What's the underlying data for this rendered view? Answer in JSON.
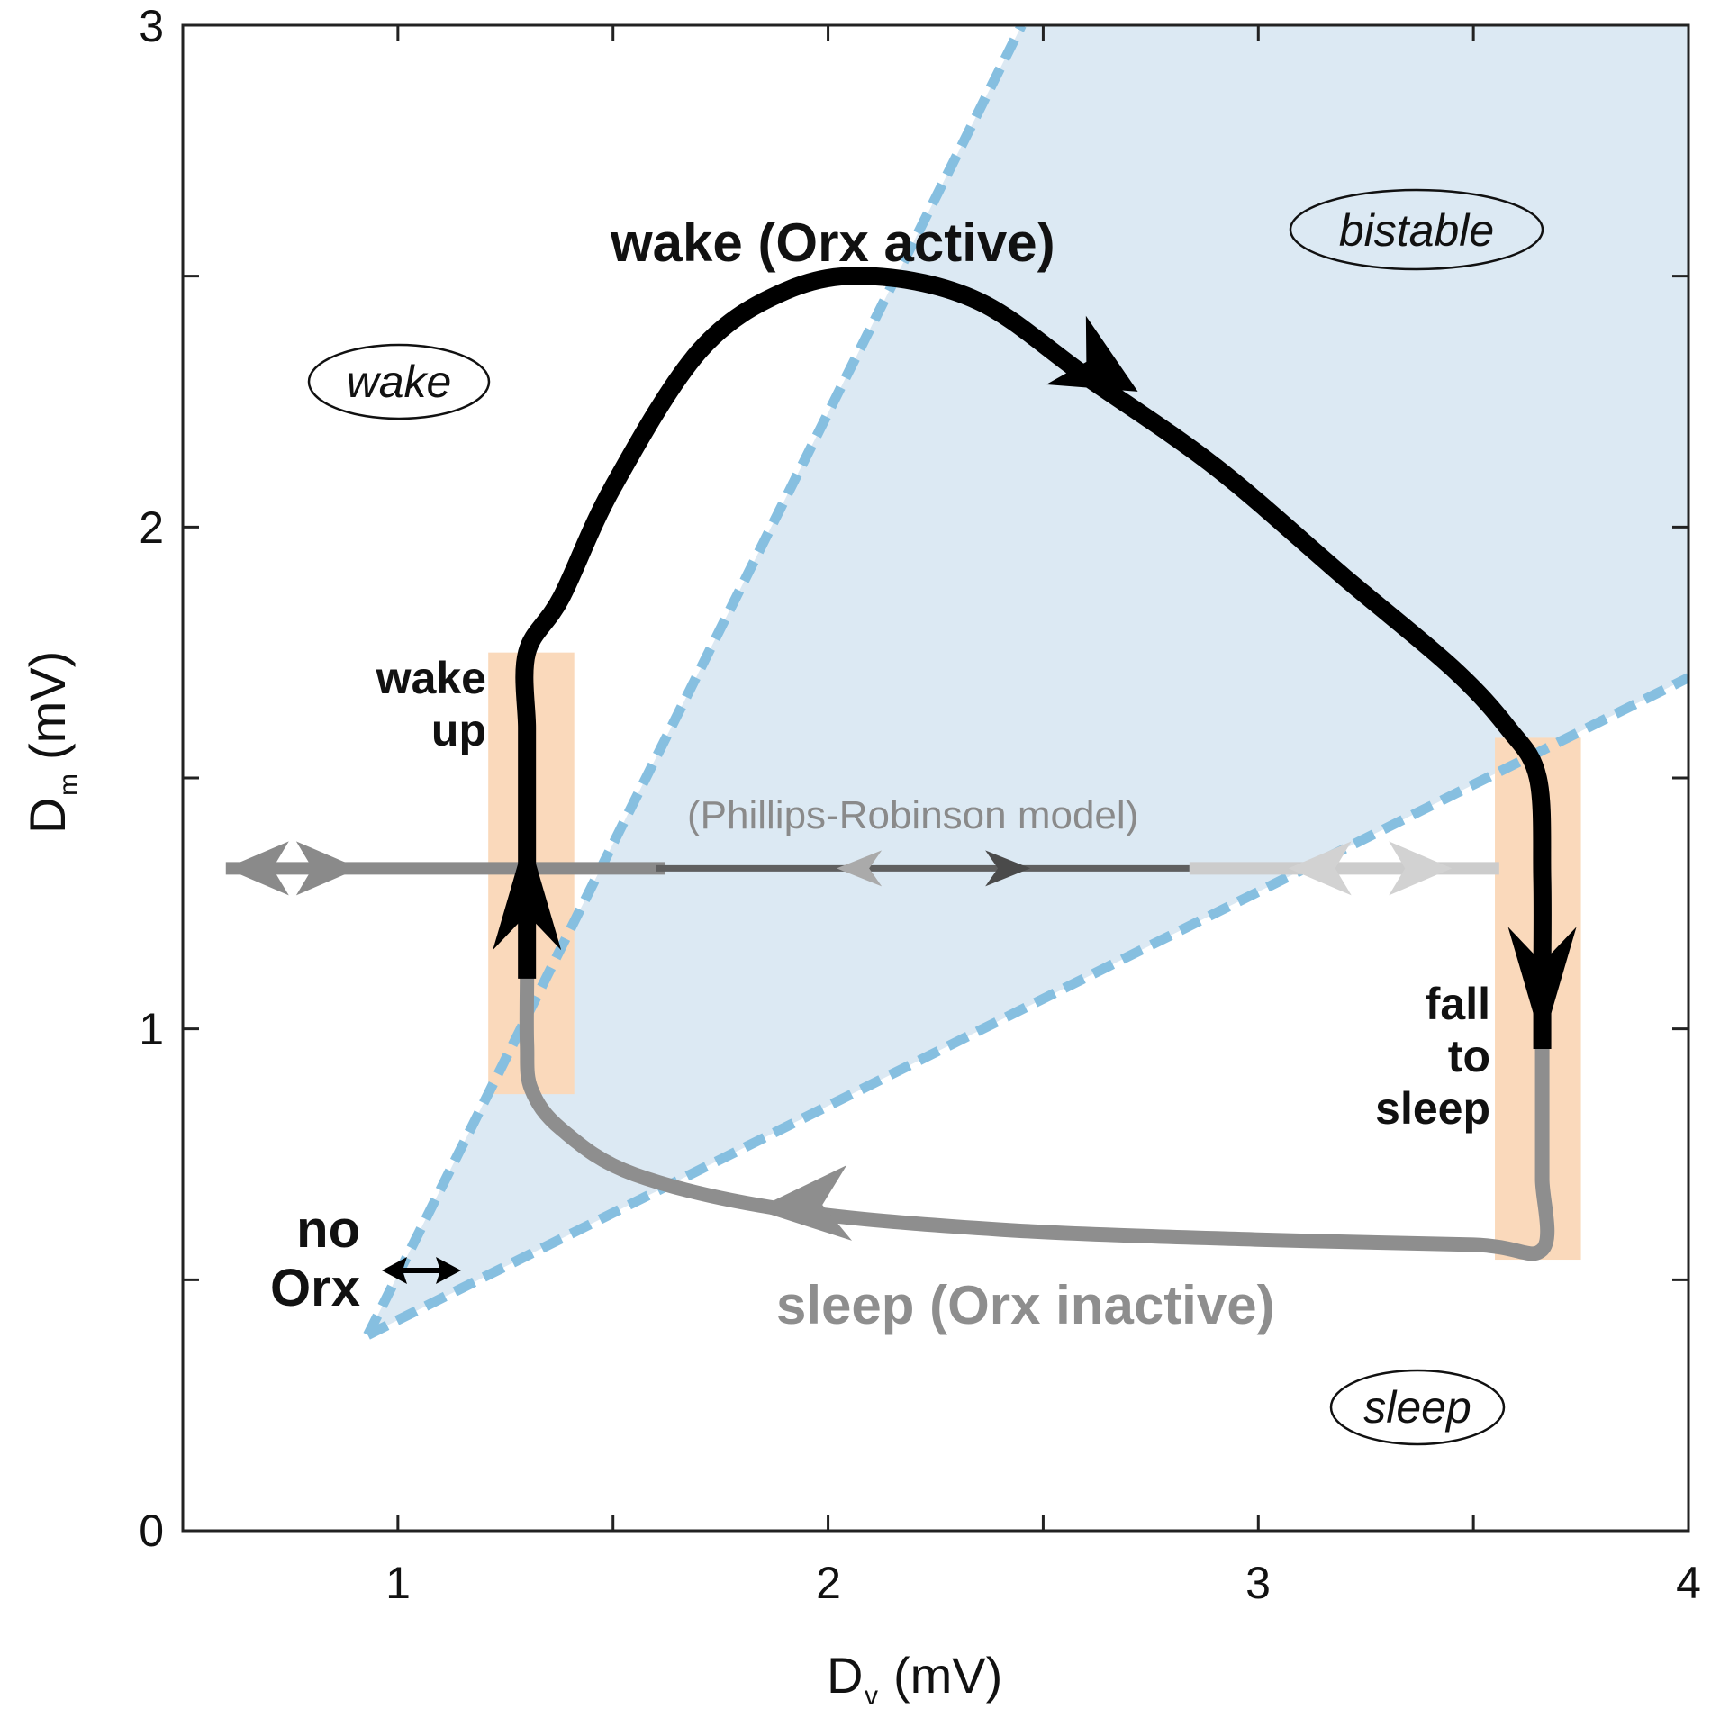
{
  "chart_data": {
    "type": "line",
    "xlabel": "D",
    "xlabel_sub": "v",
    "xlabel_unit": "(mV)",
    "ylabel": "D",
    "ylabel_sub": "m",
    "ylabel_unit": "(mV)",
    "xlim": [
      0.5,
      4
    ],
    "ylim": [
      0,
      3
    ],
    "x_ticks": [
      1,
      2,
      3,
      4
    ],
    "y_ticks": [
      0,
      1,
      2,
      3
    ],
    "x_minor_ticks": [
      1.5,
      2.5,
      3.5
    ],
    "y_minor_ticks": [
      0.5,
      1.5,
      2.5
    ],
    "grid": false,
    "legend": "none",
    "boundaries": [
      {
        "style": "dashed",
        "color": "#86bfe0",
        "points": [
          [
            0.93,
            0.39
          ],
          [
            2.45,
            3.0
          ]
        ]
      },
      {
        "style": "dashed",
        "color": "#86bfe0",
        "points": [
          [
            0.93,
            0.39
          ],
          [
            4.0,
            1.7
          ]
        ]
      }
    ],
    "bistable_region_color": "#dce9f3",
    "transition_bands": [
      {
        "x": [
          1.21,
          1.41
        ],
        "y": [
          0.87,
          1.75
        ],
        "color": "#fad9bb"
      },
      {
        "x": [
          3.55,
          3.75
        ],
        "y": [
          0.54,
          1.58
        ],
        "color": "#fad9bb"
      }
    ],
    "series": [
      {
        "name": "wake (Orx active)",
        "color": "#000000",
        "points": [
          [
            1.3,
            1.1
          ],
          [
            1.3,
            1.3
          ],
          [
            1.3,
            1.5
          ],
          [
            1.3,
            1.6
          ],
          [
            1.3,
            1.75
          ],
          [
            1.38,
            1.86
          ],
          [
            1.5,
            2.08
          ],
          [
            1.7,
            2.35
          ],
          [
            1.9,
            2.47
          ],
          [
            2.1,
            2.5
          ],
          [
            2.35,
            2.45
          ],
          [
            2.6,
            2.3
          ],
          [
            2.9,
            2.12
          ],
          [
            3.2,
            1.9
          ],
          [
            3.45,
            1.72
          ],
          [
            3.58,
            1.6
          ],
          [
            3.65,
            1.5
          ],
          [
            3.66,
            1.3
          ],
          [
            3.66,
            1.1
          ],
          [
            3.66,
            0.96
          ]
        ]
      },
      {
        "name": "sleep (Orx inactive)",
        "color": "#8e8e8e",
        "points": [
          [
            3.66,
            0.96
          ],
          [
            3.66,
            0.8
          ],
          [
            3.66,
            0.7
          ],
          [
            3.66,
            0.56
          ],
          [
            3.5,
            0.57
          ],
          [
            3.0,
            0.58
          ],
          [
            2.4,
            0.6
          ],
          [
            1.9,
            0.64
          ],
          [
            1.55,
            0.71
          ],
          [
            1.38,
            0.8
          ],
          [
            1.31,
            0.88
          ],
          [
            1.3,
            0.97
          ],
          [
            1.3,
            1.1
          ]
        ]
      },
      {
        "name": "(Phillips-Robinson model)",
        "color": "#8a8a8a",
        "points": [
          [
            0.6,
            1.32
          ],
          [
            4.0,
            1.32
          ]
        ]
      }
    ],
    "annotations": {
      "wake_active": "wake (Orx active)",
      "sleep_inactive": "sleep (Orx inactive)",
      "pr_model": "(Phillips-Robinson model)",
      "wake_up_1": "wake",
      "wake_up_2": "up",
      "fall_1": "fall",
      "fall_2": "to",
      "fall_3": "sleep",
      "no_orx_1": "no",
      "no_orx_2": "Orx",
      "region_wake": "wake",
      "region_bistable": "bistable",
      "region_sleep": "sleep"
    }
  }
}
